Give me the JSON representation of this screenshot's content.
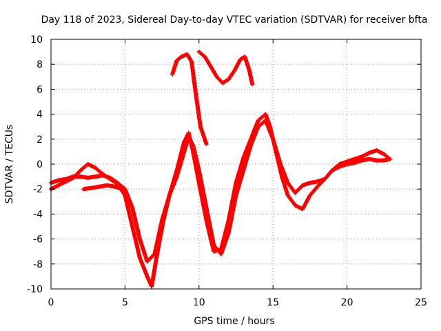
{
  "chart_data": {
    "type": "scatter",
    "title": "Day 118 of 2023, Sidereal Day-to-day VTEC variation (SDTVAR) for receiver bfta",
    "xlabel": "GPS time / hours",
    "ylabel": "SDTVAR / TECUs",
    "xlim": [
      0,
      25
    ],
    "ylim": [
      -10,
      10
    ],
    "x_ticks": [
      0,
      5,
      10,
      15,
      20,
      25
    ],
    "y_ticks": [
      -10,
      -8,
      -6,
      -4,
      -2,
      0,
      2,
      4,
      6,
      8,
      10
    ],
    "x_tick_labels": [
      "0",
      "5",
      "10",
      "15",
      "20",
      "25"
    ],
    "y_tick_labels": [
      "-10",
      "-8",
      "-6",
      "-4",
      "-2",
      "0",
      "2",
      "4",
      "6",
      "8",
      "10"
    ],
    "grid": true,
    "marker": "+",
    "color": "#ff0000",
    "series": [
      {
        "name": "trace-a",
        "x": [
          0.0,
          0.5,
          1.0,
          1.5,
          2.0,
          2.5,
          3.0,
          3.5,
          4.0,
          4.5,
          5.0,
          5.5,
          6.0,
          6.5,
          7.0,
          7.5,
          8.0,
          8.5,
          9.0,
          9.3,
          9.6,
          10.0,
          10.5,
          11.0,
          11.5,
          12.0,
          12.5,
          13.0,
          13.5,
          14.0,
          14.5,
          15.0,
          15.5,
          16.0,
          16.5,
          17.0,
          17.5,
          18.0,
          18.5,
          19.0,
          19.5,
          20.0,
          20.5,
          21.0,
          21.5,
          22.0,
          22.5,
          22.9
        ],
        "y": [
          -1.5,
          -1.3,
          -1.2,
          -1.0,
          -1.0,
          -1.1,
          -1.0,
          -0.9,
          -1.1,
          -1.5,
          -2.0,
          -3.5,
          -6.0,
          -7.8,
          -7.2,
          -4.5,
          -2.5,
          -1.0,
          1.0,
          2.2,
          1.5,
          -0.5,
          -3.5,
          -6.5,
          -7.2,
          -5.5,
          -2.5,
          -0.5,
          1.5,
          3.0,
          3.5,
          2.0,
          0.0,
          -1.5,
          -2.3,
          -1.7,
          -1.5,
          -1.4,
          -1.2,
          -0.5,
          -0.2,
          0.0,
          0.1,
          0.3,
          0.4,
          0.3,
          0.3,
          0.4
        ]
      },
      {
        "name": "trace-b",
        "x": [
          0.0,
          0.5,
          1.0,
          1.5,
          2.0,
          2.5,
          3.0,
          3.5,
          4.0,
          4.5,
          5.0,
          5.5,
          6.0,
          6.5,
          6.8,
          7.2,
          7.6,
          8.0,
          8.5,
          9.0,
          9.3,
          9.6,
          10.0,
          10.5,
          11.0,
          11.5,
          12.0,
          12.5,
          13.0,
          13.5,
          14.0,
          14.5,
          14.8,
          15.2,
          15.6,
          16.0,
          16.5,
          17.0,
          17.5,
          18.0,
          18.5,
          19.0,
          19.5,
          20.0,
          20.5,
          21.0,
          21.5,
          22.0,
          22.5,
          22.9
        ],
        "y": [
          -2.0,
          -1.7,
          -1.4,
          -1.1,
          -0.5,
          0.0,
          -0.3,
          -0.8,
          -1.2,
          -1.6,
          -2.5,
          -5.0,
          -7.5,
          -9.0,
          -9.8,
          -7.0,
          -4.5,
          -2.5,
          -0.5,
          1.8,
          2.5,
          1.0,
          -1.5,
          -4.5,
          -7.0,
          -6.8,
          -4.5,
          -1.5,
          0.5,
          2.0,
          3.5,
          4.0,
          3.0,
          1.0,
          -1.0,
          -2.5,
          -3.3,
          -3.6,
          -2.5,
          -1.8,
          -1.2,
          -0.5,
          0.0,
          0.2,
          0.4,
          0.6,
          0.9,
          1.1,
          0.8,
          0.4
        ]
      },
      {
        "name": "trace-c",
        "x": [
          2.2,
          2.8,
          3.3,
          3.8,
          4.3,
          4.8,
          5.2
        ],
        "y": [
          -2.0,
          -1.9,
          -1.8,
          -1.7,
          -1.8,
          -2.0,
          -2.5
        ]
      },
      {
        "name": "trace-d",
        "x": [
          8.2,
          8.5,
          8.8,
          9.2,
          9.5,
          9.8,
          10.1,
          10.5
        ],
        "y": [
          7.2,
          8.3,
          8.6,
          8.8,
          8.2,
          5.5,
          3.0,
          1.6
        ]
      },
      {
        "name": "trace-e",
        "x": [
          10.0,
          10.4,
          10.8,
          11.2,
          11.6,
          12.0,
          12.4,
          12.8,
          13.1,
          13.4,
          13.6
        ],
        "y": [
          9.0,
          8.6,
          7.8,
          7.0,
          6.5,
          6.8,
          7.5,
          8.4,
          8.6,
          7.5,
          6.4
        ]
      }
    ]
  }
}
